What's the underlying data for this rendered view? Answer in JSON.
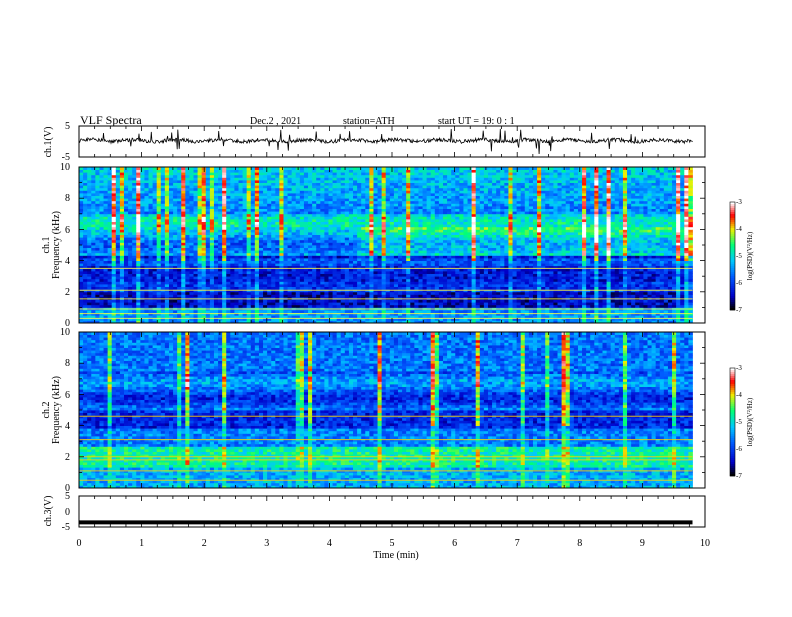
{
  "header": {
    "title": "VLF  Spectra",
    "date": "Dec.2  , 2021",
    "station": "station=ATH",
    "start_ut": "start  UT  =   19: 0   : 1"
  },
  "chart_data": [
    {
      "type": "line",
      "name": "ch1-waveform",
      "ylabel": "ch.1(V)",
      "ylim": [
        -5,
        5
      ],
      "yticks": [
        "5",
        "-5"
      ],
      "xlim": [
        0,
        10
      ],
      "data_end_min": 9.8,
      "baseline_v": 0.3,
      "color": "#000000"
    },
    {
      "type": "heatmap",
      "name": "ch1-spectrogram",
      "ylabel_line1": "ch.1",
      "ylabel_line2": "Frequency  (kHz)",
      "ylim": [
        0,
        10
      ],
      "yticks": [
        "0",
        "2",
        "4",
        "6",
        "8",
        "10"
      ],
      "xlim": [
        0,
        10
      ],
      "data_end_min": 9.8,
      "colorbar": {
        "label": "log(PSD)(V²/Hz)",
        "range": [
          -7,
          -3
        ],
        "ticks": [
          "-3",
          "-4",
          "-5",
          "-6",
          "-7"
        ]
      }
    },
    {
      "type": "heatmap",
      "name": "ch2-spectrogram",
      "ylabel_line1": "ch.2",
      "ylabel_line2": "Frequency  (kHz)",
      "ylim": [
        0,
        10
      ],
      "yticks": [
        "0",
        "2",
        "4",
        "6",
        "8",
        "10"
      ],
      "xlim": [
        0,
        10
      ],
      "data_end_min": 9.8,
      "colorbar": {
        "label": "log(PSD)(V²/Hz)",
        "range": [
          -7,
          -3
        ],
        "ticks": [
          "-3",
          "-4",
          "-5",
          "-6",
          "-7"
        ]
      }
    },
    {
      "type": "line",
      "name": "ch3-waveform",
      "ylabel": "ch.3(V)",
      "ylim": [
        -5,
        5
      ],
      "yticks": [
        "5",
        "0",
        "-5"
      ],
      "xlim": [
        0,
        10
      ],
      "data_end_min": 9.8,
      "baseline_v": -3.5,
      "color": "#000000"
    }
  ],
  "xaxis": {
    "label": "Time  (min)",
    "ticks": [
      "0",
      "1",
      "2",
      "3",
      "4",
      "5",
      "6",
      "7",
      "8",
      "9",
      "10"
    ],
    "range": [
      0,
      10
    ]
  },
  "colors": {
    "colormap": [
      "#000000",
      "#0000ff",
      "#00bfff",
      "#00ff7f",
      "#ffff00",
      "#ff0000",
      "#ffffff"
    ]
  }
}
